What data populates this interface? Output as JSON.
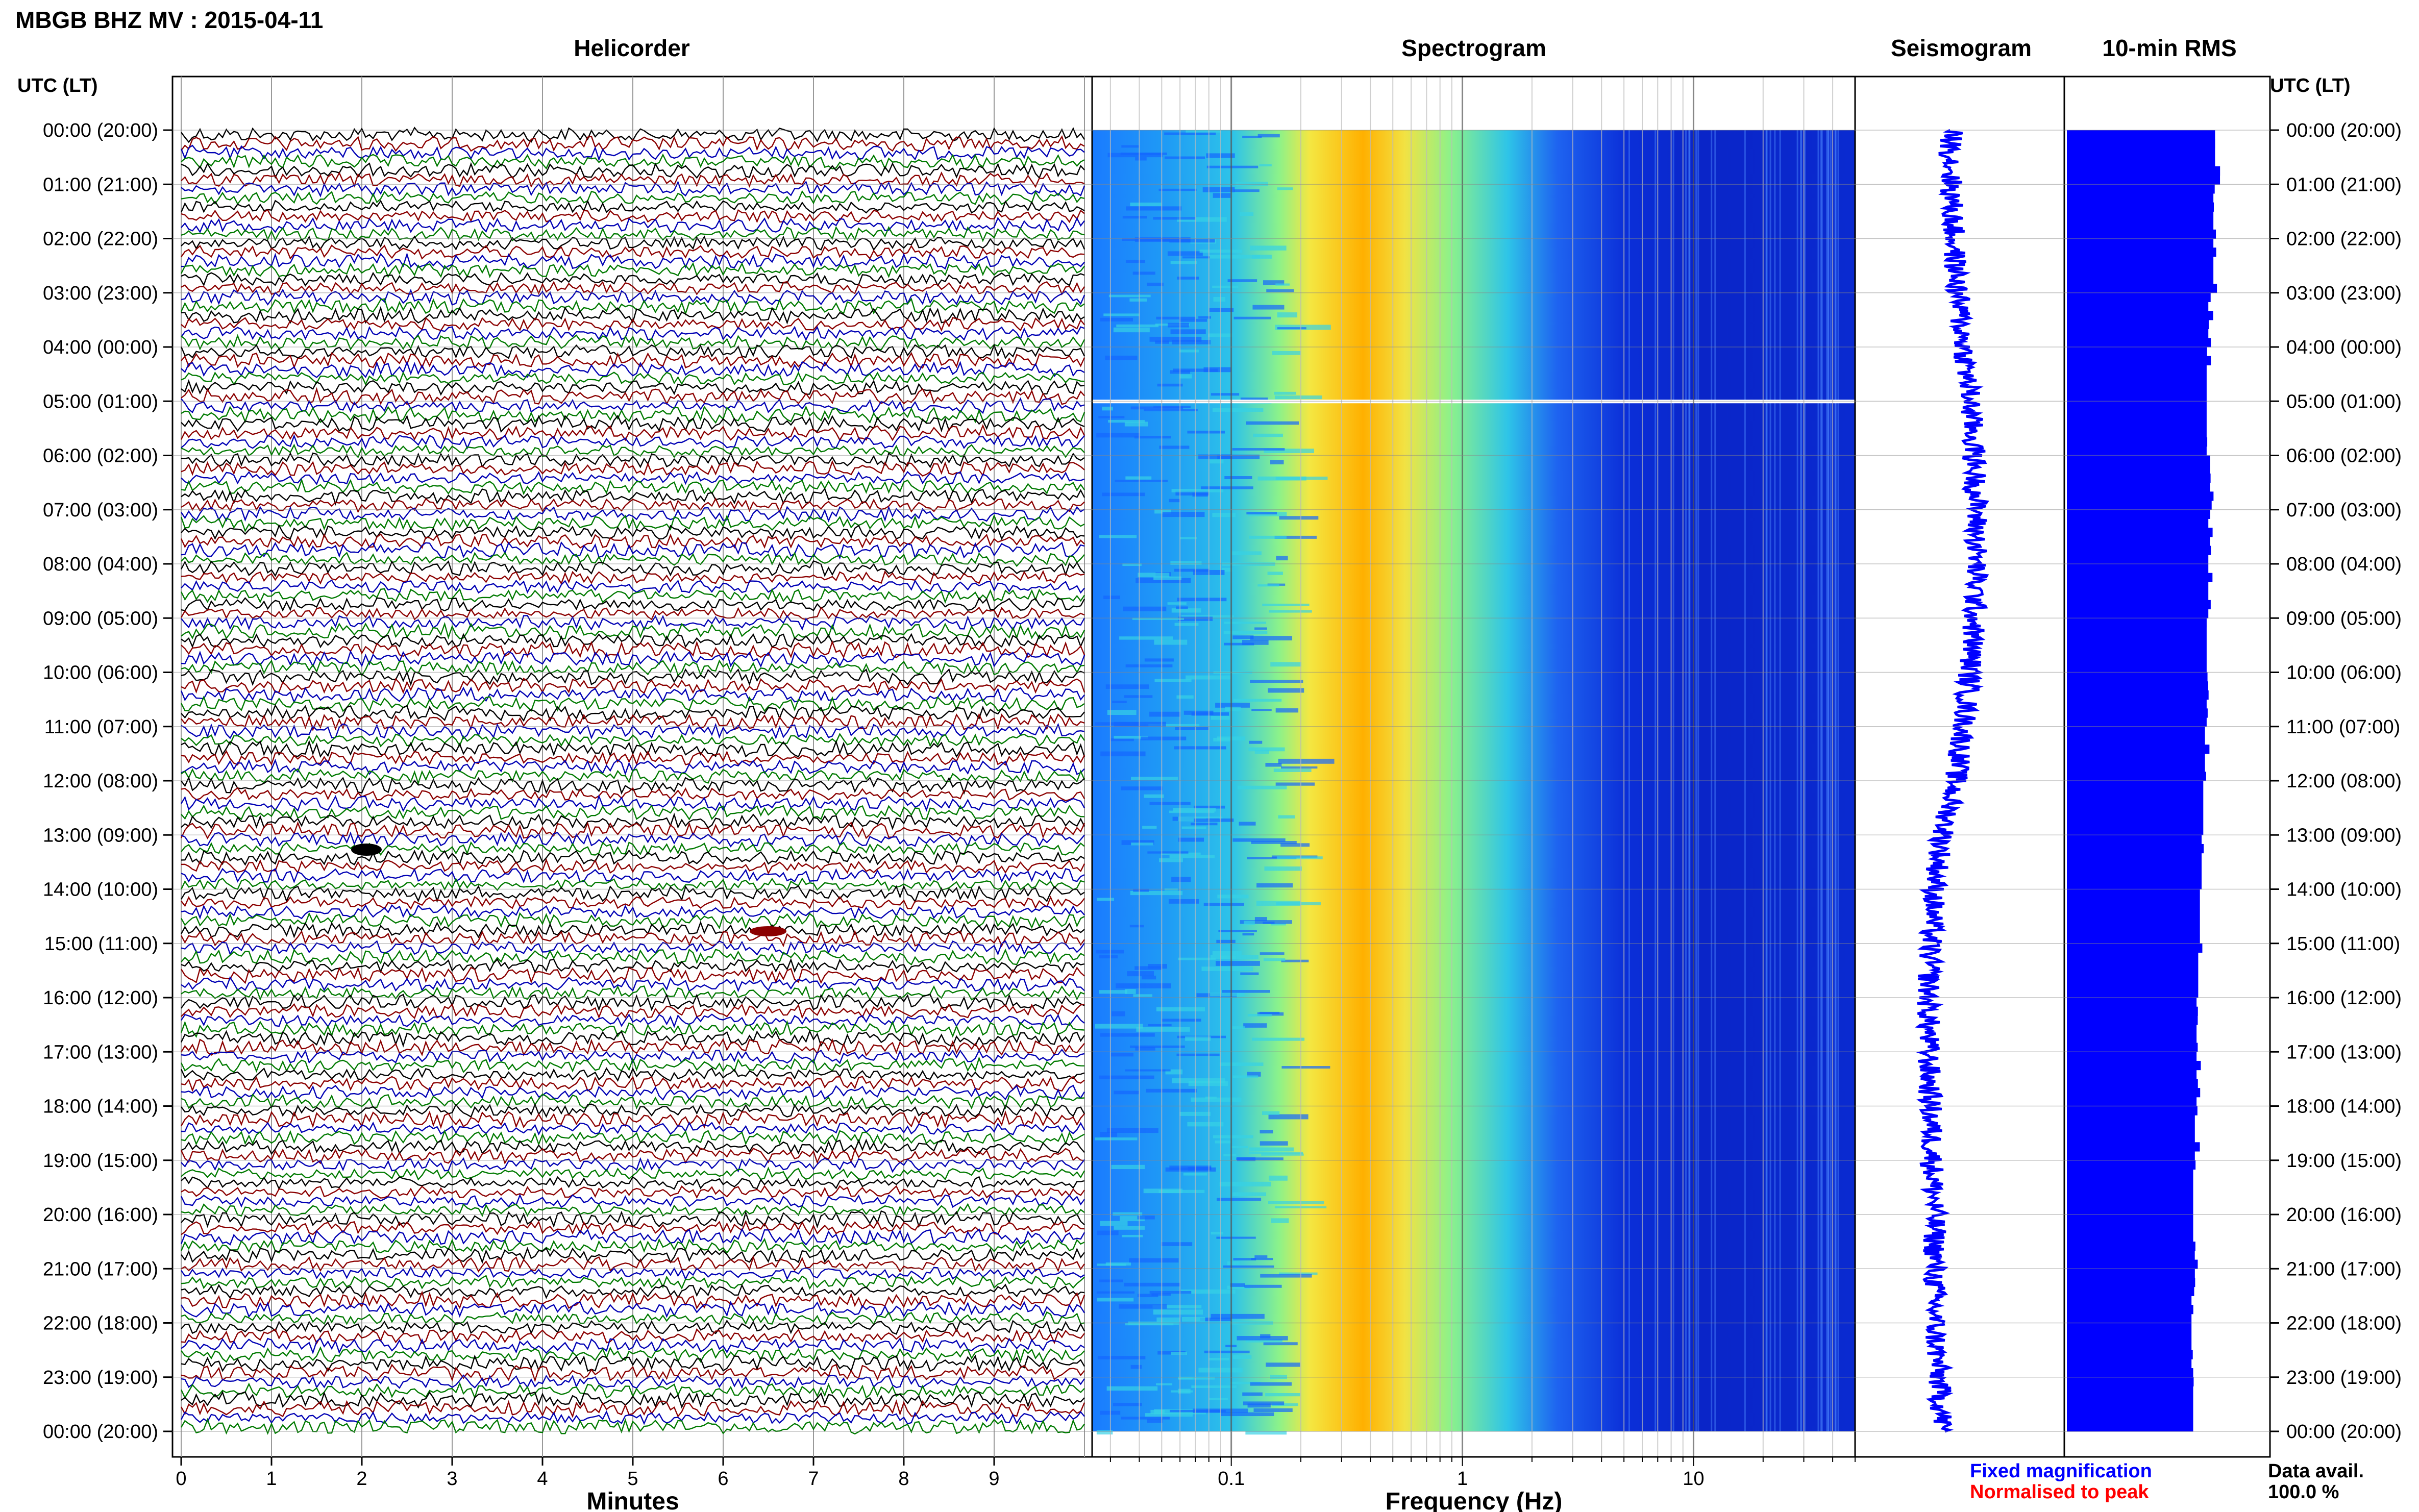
{
  "header": {
    "title": "MBGB BHZ MV : 2015-04-11",
    "utc_label": "UTC (LT)"
  },
  "panels": {
    "helicorder": "Helicorder",
    "spectrogram": "Spectrogram",
    "seismogram": "Seismogram",
    "rms": "10-min RMS"
  },
  "time_labels": [
    "00:00 (20:00)",
    "01:00 (21:00)",
    "02:00 (22:00)",
    "03:00 (23:00)",
    "04:00 (00:00)",
    "05:00 (01:00)",
    "06:00 (02:00)",
    "07:00 (03:00)",
    "08:00 (04:00)",
    "09:00 (05:00)",
    "10:00 (06:00)",
    "11:00 (07:00)",
    "12:00 (08:00)",
    "13:00 (09:00)",
    "14:00 (10:00)",
    "15:00 (11:00)",
    "16:00 (12:00)",
    "17:00 (13:00)",
    "18:00 (14:00)",
    "19:00 (15:00)",
    "20:00 (16:00)",
    "21:00 (17:00)",
    "22:00 (18:00)",
    "23:00 (19:00)",
    "00:00 (20:00)"
  ],
  "footer": {
    "fixed_magnification": "Fixed magnification",
    "normalised_to_peak": "Normalised to peak",
    "data_avail_label": "Data avail.",
    "data_avail_value": "100.0 %"
  },
  "colors": {
    "trace_black": "#000000",
    "trace_red": "#8b0000",
    "trace_blue": "#0000b4",
    "trace_green": "#007a00",
    "rms_blue": "#0000ff",
    "legend_blue": "#0000ff",
    "legend_red": "#ff0000"
  },
  "chart_data": [
    {
      "type": "line",
      "name": "helicorder",
      "title": "Helicorder",
      "xlabel": "Minutes",
      "x_ticks": [
        "0",
        "1",
        "2",
        "3",
        "4",
        "5",
        "6",
        "7",
        "8",
        "9"
      ],
      "xlim": [
        0,
        10
      ],
      "rows_per_hour": 6,
      "trace_color_cycle": [
        "black",
        "red",
        "blue",
        "green"
      ],
      "gap_hour": 5
    },
    {
      "type": "heatmap",
      "name": "spectrogram",
      "title": "Spectrogram",
      "xlabel": "Frequency (Hz)",
      "x_scale": "log",
      "x_ticks": [
        "0.1",
        "1",
        "10"
      ],
      "xlim": [
        0.025,
        50
      ],
      "peak_frequency_hz": 0.35,
      "colormap": "jet"
    },
    {
      "type": "line",
      "name": "seismogram",
      "title": "Seismogram",
      "description_values": [
        0.46,
        0.46,
        0.47,
        0.49,
        0.52,
        0.55,
        0.57,
        0.58,
        0.58,
        0.57,
        0.55,
        0.52,
        0.48,
        0.42,
        0.38,
        0.36,
        0.35,
        0.35,
        0.36,
        0.37,
        0.38,
        0.38,
        0.38,
        0.4,
        0.42
      ]
    },
    {
      "type": "bar",
      "name": "rms",
      "title": "10-min RMS",
      "orientation": "horizontal",
      "hours": [
        0,
        1,
        2,
        3,
        4,
        5,
        6,
        7,
        8,
        9,
        10,
        11,
        12,
        13,
        14,
        15,
        16,
        17,
        18,
        19,
        20,
        21,
        22,
        23
      ],
      "values": [
        0.88,
        0.87,
        0.87,
        0.84,
        0.83,
        0.83,
        0.85,
        0.84,
        0.84,
        0.83,
        0.83,
        0.82,
        0.81,
        0.8,
        0.79,
        0.78,
        0.77,
        0.77,
        0.76,
        0.75,
        0.75,
        0.74,
        0.74,
        0.75
      ]
    }
  ]
}
